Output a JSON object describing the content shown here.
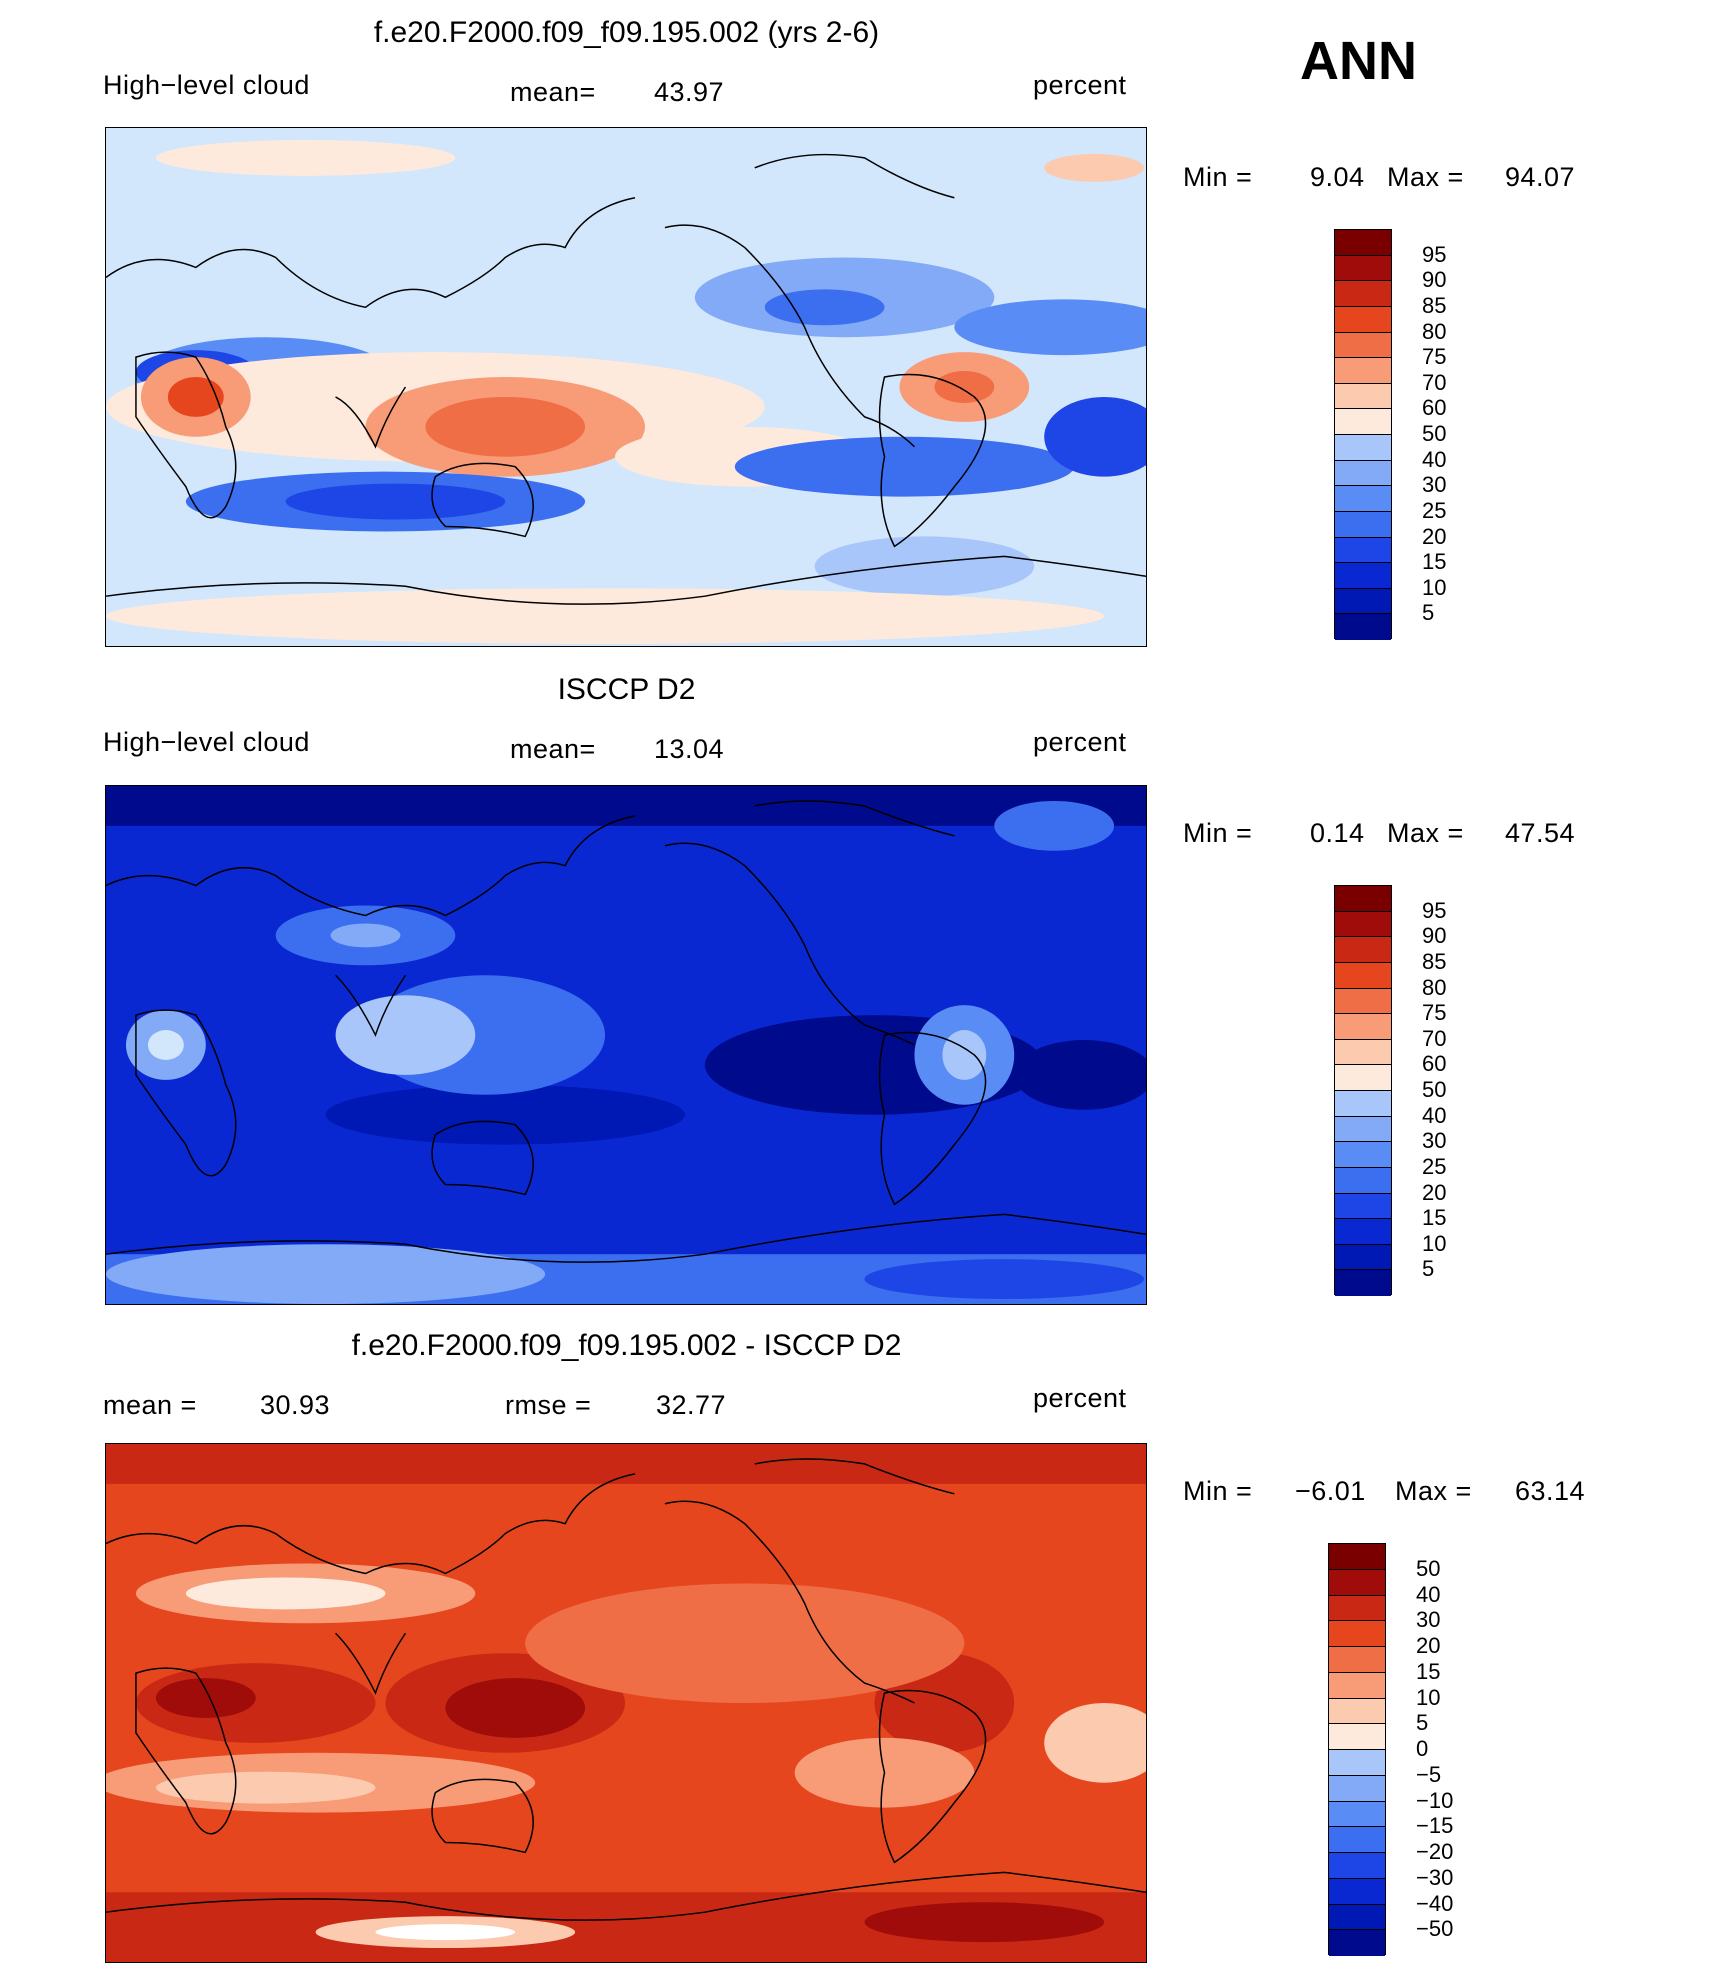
{
  "header": {
    "season": "ANN"
  },
  "colors": {
    "ramp": [
      "#000a8c",
      "#0018b4",
      "#0a28d2",
      "#1e46e6",
      "#3c6ef0",
      "#5a8cf5",
      "#82aaf7",
      "#a8c6fa",
      "#d2e6fc",
      "#fdeadd",
      "#fccbaf",
      "#f89c78",
      "#f06e46",
      "#e6461e",
      "#c82814",
      "#a00c0a",
      "#7a0000"
    ],
    "ramp_diff": [
      "#000a8c",
      "#0018b4",
      "#0a28d2",
      "#1e46e6",
      "#3c6ef0",
      "#5a8cf5",
      "#82aaf7",
      "#a8c6fa",
      "#d2e6fc",
      "#fdeadd",
      "#fccbaf",
      "#f89c78",
      "#f06e46",
      "#e6461e",
      "#c82814",
      "#a00c0a",
      "#7a0000"
    ]
  },
  "panels": [
    {
      "title": "f.e20.F2000.f09_f09.195.002 (yrs 2-6)",
      "left_label": "High−level cloud",
      "mean_label": "mean=",
      "mean_value": "43.97",
      "units": "percent",
      "min_label": "Min =",
      "min_value": "9.04",
      "max_label": "Max =",
      "max_value": "94.07",
      "colorbar_ticks": [
        "95",
        "90",
        "85",
        "80",
        "75",
        "70",
        "60",
        "50",
        "40",
        "30",
        "25",
        "20",
        "15",
        "10",
        "5"
      ]
    },
    {
      "title": "ISCCP D2",
      "left_label": "High−level cloud",
      "mean_label": "mean=",
      "mean_value": "13.04",
      "units": "percent",
      "min_label": "Min =",
      "min_value": "0.14",
      "max_label": "Max =",
      "max_value": "47.54",
      "colorbar_ticks": [
        "95",
        "90",
        "85",
        "80",
        "75",
        "70",
        "60",
        "50",
        "40",
        "30",
        "25",
        "20",
        "15",
        "10",
        "5"
      ]
    },
    {
      "title": "f.e20.F2000.f09_f09.195.002 - ISCCP D2",
      "mean_label": "mean =",
      "mean_value": "30.93",
      "rmse_label": "rmse =",
      "rmse_value": "32.77",
      "units": "percent",
      "min_label": "Min =",
      "min_value": "−6.01",
      "max_label": "Max =",
      "max_value": "63.14",
      "colorbar_ticks": [
        "50",
        "40",
        "30",
        "20",
        "15",
        "10",
        "5",
        "0",
        "−5",
        "−10",
        "−15",
        "−20",
        "−30",
        "−40",
        "−50"
      ]
    }
  ]
}
